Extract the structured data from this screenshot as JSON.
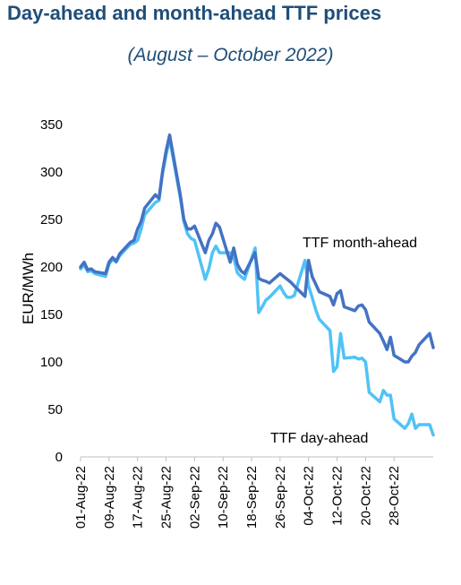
{
  "chart_data": {
    "type": "line",
    "title": "Day-ahead and month-ahead TTF prices",
    "subtitle": "(August – October 2022)",
    "xlabel": "",
    "ylabel": "EUR/MWh",
    "ylim": [
      0,
      350
    ],
    "yticks": [
      "0",
      "50",
      "100",
      "150",
      "200",
      "250",
      "300",
      "350"
    ],
    "xticks": [
      "01-Aug-22",
      "09-Aug-22",
      "17-Aug-22",
      "25-Aug-22",
      "02-Sep-22",
      "10-Sep-22",
      "18-Sep-22",
      "26-Sep-22",
      "04-Oct-22",
      "12-Oct-22",
      "20-Oct-22",
      "28-Oct-22"
    ],
    "grid": false,
    "legend": "inline labels",
    "series": [
      {
        "name": "TTF month-ahead",
        "color": "#4472c4",
        "points": [
          [
            "2022-08-01",
            200
          ],
          [
            "2022-08-02",
            205
          ],
          [
            "2022-08-03",
            197
          ],
          [
            "2022-08-04",
            198
          ],
          [
            "2022-08-05",
            195
          ],
          [
            "2022-08-08",
            193
          ],
          [
            "2022-08-09",
            205
          ],
          [
            "2022-08-10",
            210
          ],
          [
            "2022-08-11",
            206
          ],
          [
            "2022-08-12",
            214
          ],
          [
            "2022-08-15",
            226
          ],
          [
            "2022-08-16",
            228
          ],
          [
            "2022-08-17",
            240
          ],
          [
            "2022-08-18",
            248
          ],
          [
            "2022-08-19",
            262
          ],
          [
            "2022-08-22",
            276
          ],
          [
            "2022-08-23",
            272
          ],
          [
            "2022-08-24",
            300
          ],
          [
            "2022-08-25",
            322
          ],
          [
            "2022-08-26",
            339
          ],
          [
            "2022-08-29",
            276
          ],
          [
            "2022-08-30",
            250
          ],
          [
            "2022-08-31",
            240
          ],
          [
            "2022-09-01",
            240
          ],
          [
            "2022-09-02",
            243
          ],
          [
            "2022-09-05",
            215
          ],
          [
            "2022-09-06",
            228
          ],
          [
            "2022-09-07",
            235
          ],
          [
            "2022-09-08",
            246
          ],
          [
            "2022-09-09",
            242
          ],
          [
            "2022-09-12",
            205
          ],
          [
            "2022-09-13",
            220
          ],
          [
            "2022-09-14",
            203
          ],
          [
            "2022-09-15",
            196
          ],
          [
            "2022-09-16",
            193
          ],
          [
            "2022-09-19",
            215
          ],
          [
            "2022-09-20",
            188
          ],
          [
            "2022-09-21",
            186
          ],
          [
            "2022-09-22",
            185
          ],
          [
            "2022-09-23",
            183
          ],
          [
            "2022-09-26",
            193
          ],
          [
            "2022-09-27",
            190
          ],
          [
            "2022-09-28",
            187
          ],
          [
            "2022-09-29",
            184
          ],
          [
            "2022-09-30",
            180
          ],
          [
            "2022-10-03",
            169
          ],
          [
            "2022-10-04",
            207
          ],
          [
            "2022-10-05",
            190
          ],
          [
            "2022-10-06",
            182
          ],
          [
            "2022-10-07",
            174
          ],
          [
            "2022-10-10",
            169
          ],
          [
            "2022-10-11",
            160
          ],
          [
            "2022-10-12",
            172
          ],
          [
            "2022-10-13",
            175
          ],
          [
            "2022-10-14",
            158
          ],
          [
            "2022-10-17",
            154
          ],
          [
            "2022-10-18",
            159
          ],
          [
            "2022-10-19",
            160
          ],
          [
            "2022-10-20",
            155
          ],
          [
            "2022-10-21",
            142
          ],
          [
            "2022-10-24",
            130
          ],
          [
            "2022-10-25",
            122
          ],
          [
            "2022-10-26",
            113
          ],
          [
            "2022-10-27",
            126
          ],
          [
            "2022-10-28",
            107
          ],
          [
            "2022-10-31",
            100
          ],
          [
            "2022-11-01",
            100
          ],
          [
            "2022-11-02",
            106
          ],
          [
            "2022-11-03",
            110
          ],
          [
            "2022-11-04",
            118
          ],
          [
            "2022-11-07",
            130
          ],
          [
            "2022-11-08",
            115
          ]
        ]
      },
      {
        "name": "TTF day-ahead",
        "color": "#4fc3f7",
        "points": [
          [
            "2022-08-01",
            198
          ],
          [
            "2022-08-02",
            202
          ],
          [
            "2022-08-03",
            195
          ],
          [
            "2022-08-04",
            196
          ],
          [
            "2022-08-05",
            193
          ],
          [
            "2022-08-08",
            190
          ],
          [
            "2022-08-09",
            203
          ],
          [
            "2022-08-10",
            208
          ],
          [
            "2022-08-11",
            205
          ],
          [
            "2022-08-12",
            212
          ],
          [
            "2022-08-15",
            224
          ],
          [
            "2022-08-16",
            225
          ],
          [
            "2022-08-17",
            228
          ],
          [
            "2022-08-18",
            240
          ],
          [
            "2022-08-19",
            255
          ],
          [
            "2022-08-22",
            268
          ],
          [
            "2022-08-23",
            270
          ],
          [
            "2022-08-24",
            298
          ],
          [
            "2022-08-25",
            318
          ],
          [
            "2022-08-26",
            335
          ],
          [
            "2022-08-29",
            273
          ],
          [
            "2022-08-30",
            248
          ],
          [
            "2022-08-31",
            235
          ],
          [
            "2022-09-01",
            230
          ],
          [
            "2022-09-02",
            228
          ],
          [
            "2022-09-05",
            187
          ],
          [
            "2022-09-06",
            198
          ],
          [
            "2022-09-07",
            215
          ],
          [
            "2022-09-08",
            222
          ],
          [
            "2022-09-09",
            215
          ],
          [
            "2022-09-12",
            215
          ],
          [
            "2022-09-13",
            210
          ],
          [
            "2022-09-14",
            194
          ],
          [
            "2022-09-15",
            190
          ],
          [
            "2022-09-16",
            187
          ],
          [
            "2022-09-19",
            220
          ],
          [
            "2022-09-20",
            152
          ],
          [
            "2022-09-21",
            158
          ],
          [
            "2022-09-22",
            165
          ],
          [
            "2022-09-23",
            168
          ],
          [
            "2022-09-26",
            180
          ],
          [
            "2022-09-27",
            173
          ],
          [
            "2022-09-28",
            168
          ],
          [
            "2022-09-29",
            168
          ],
          [
            "2022-09-30",
            170
          ],
          [
            "2022-10-03",
            207
          ],
          [
            "2022-10-04",
            180
          ],
          [
            "2022-10-05",
            168
          ],
          [
            "2022-10-06",
            155
          ],
          [
            "2022-10-07",
            145
          ],
          [
            "2022-10-10",
            133
          ],
          [
            "2022-10-11",
            90
          ],
          [
            "2022-10-12",
            95
          ],
          [
            "2022-10-13",
            130
          ],
          [
            "2022-10-14",
            104
          ],
          [
            "2022-10-17",
            105
          ],
          [
            "2022-10-18",
            103
          ],
          [
            "2022-10-19",
            104
          ],
          [
            "2022-10-20",
            100
          ],
          [
            "2022-10-21",
            68
          ],
          [
            "2022-10-24",
            58
          ],
          [
            "2022-10-25",
            70
          ],
          [
            "2022-10-26",
            65
          ],
          [
            "2022-10-27",
            65
          ],
          [
            "2022-10-28",
            40
          ],
          [
            "2022-10-31",
            30
          ],
          [
            "2022-11-01",
            35
          ],
          [
            "2022-11-02",
            45
          ],
          [
            "2022-11-03",
            30
          ],
          [
            "2022-11-04",
            34
          ],
          [
            "2022-11-07",
            34
          ],
          [
            "2022-11-08",
            23
          ]
        ]
      }
    ]
  }
}
